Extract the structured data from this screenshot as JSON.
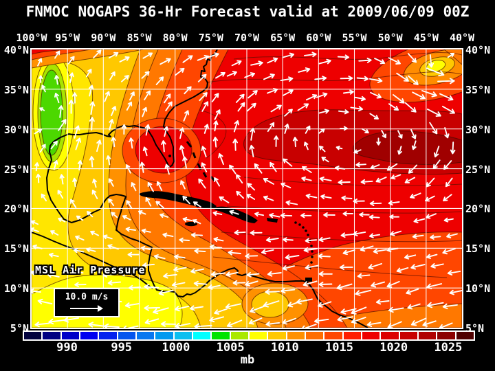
{
  "title": "FNMOC NOGAPS 36-Hr Forecast valid at 2009/06/09 00Z",
  "axes": {
    "lon_labels": [
      "100°W",
      "95°W",
      "90°W",
      "85°W",
      "80°W",
      "75°W",
      "70°W",
      "65°W",
      "60°W",
      "55°W",
      "50°W",
      "45°W",
      "40°W"
    ],
    "lat_labels": [
      "40°N",
      "35°N",
      "30°N",
      "25°N",
      "20°N",
      "15°N",
      "10°N",
      "5°N"
    ]
  },
  "overlay": {
    "field_label": "MSL Air Pressure",
    "wind_scale_label": "10.0 m/s"
  },
  "colorbar": {
    "unit": "mb",
    "tick_labels": [
      "990",
      "995",
      "1000",
      "1005",
      "1010",
      "1015",
      "1020",
      "1025"
    ],
    "cell_colors": [
      "#02023E",
      "#000082",
      "#0000C8",
      "#0202F0",
      "#0522EE",
      "#0555EE",
      "#0877F0",
      "#0099F0",
      "#0BBFF0",
      "#00FFFF",
      "#00E400",
      "#AAE800",
      "#FFFF00",
      "#FFC800",
      "#FF9100",
      "#FF6E00",
      "#FF4600",
      "#FF1E00",
      "#EE0000",
      "#DC0000",
      "#C80000",
      "#B00000",
      "#8B0000",
      "#500000"
    ]
  },
  "chart_data": {
    "type": "heatmap",
    "title": "FNMOC NOGAPS 36-Hr Forecast valid at 2009/06/09 00Z",
    "variable": "MSL Air Pressure",
    "unit": "mb",
    "lon_range": [
      "100°W",
      "40°W"
    ],
    "lat_range": [
      "5°N",
      "40°N"
    ],
    "grid_interval_deg": 5,
    "colorbar_ticks_mb": [
      990,
      995,
      1000,
      1005,
      1010,
      1015,
      1020,
      1025
    ],
    "features": [
      {
        "name": "subtropical high center (dark red core)",
        "approx_position": "27N 52W",
        "value_mb": "≈1022-1024"
      },
      {
        "name": "low pressure trough (green area)",
        "approx_position": "33N 96W",
        "value_mb": "≈1006-1008"
      },
      {
        "name": "weak low (yellow spot)",
        "approx_position": "38N 43W",
        "value_mb": "≈1010"
      },
      {
        "name": "yellow low-gradient belt over Central America / E Pacific",
        "approx_position": "5-12N 75-100W",
        "value_mb": "≈1009-1011"
      }
    ],
    "wind_reference": "10.0 m/s",
    "wind_regime": "easterly trade winds south of 20N, anticyclonic flow around the Atlantic high, southerly flow over Texas / western Gulf"
  }
}
